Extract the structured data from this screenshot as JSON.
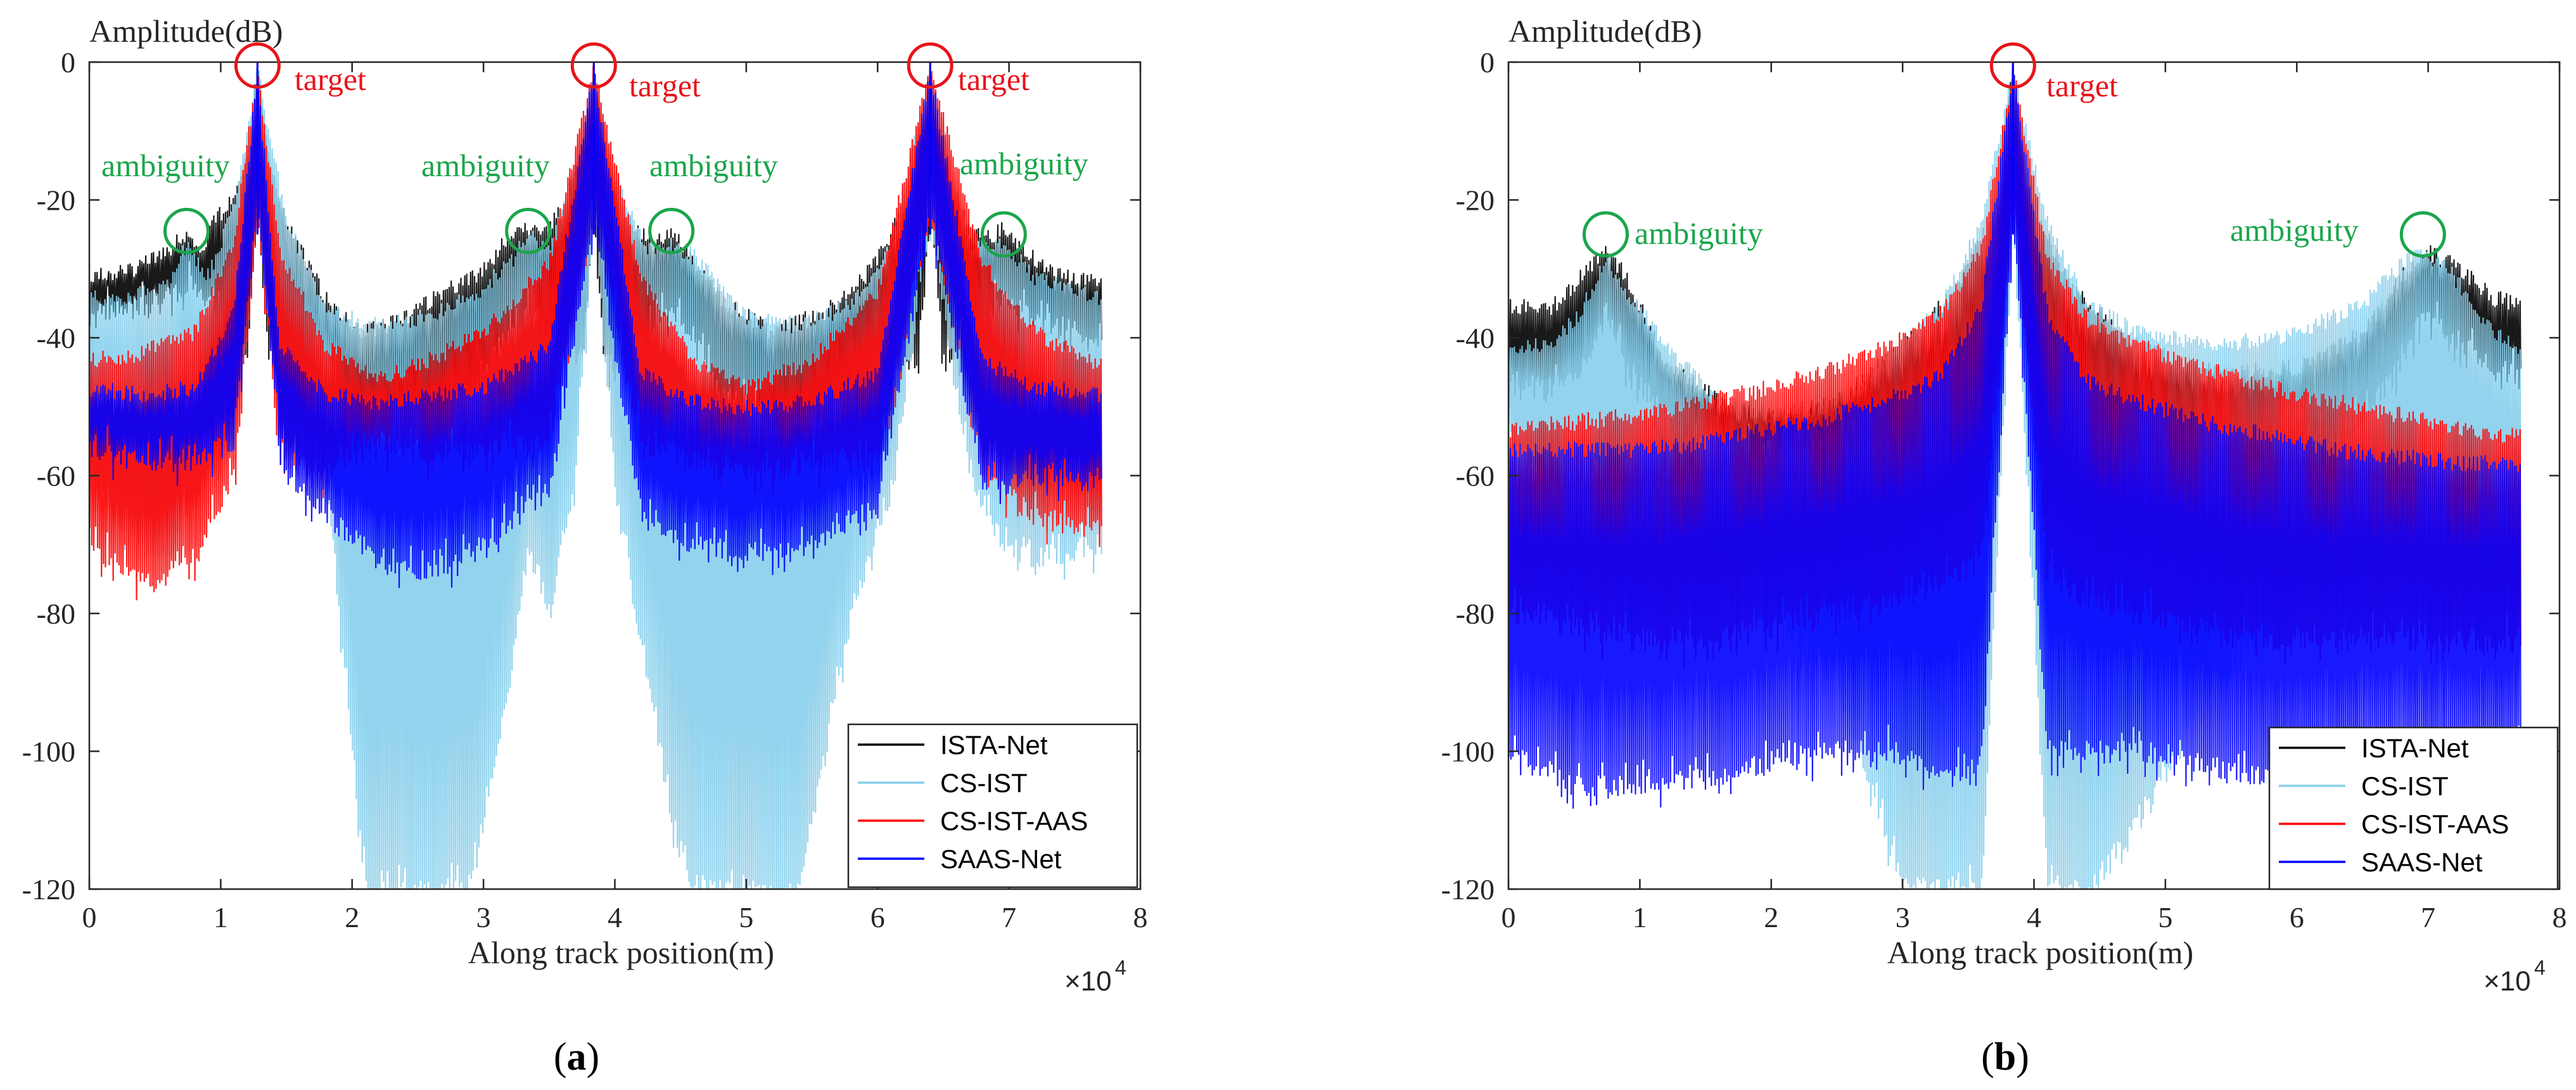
{
  "figure": {
    "panels": [
      {
        "id": "a",
        "caption": {
          "open": "(",
          "letter": "a",
          "close": ")"
        },
        "y_axis_title": "Amplitude(dB)",
        "x_axis_title": "Along track position(m)",
        "x_multiplier": "×10",
        "x_multiplier_exp": "4",
        "x_ticks": [
          "0",
          "1",
          "2",
          "3",
          "4",
          "5",
          "6",
          "7",
          "8"
        ],
        "y_ticks": [
          "0",
          "-20",
          "-40",
          "-60",
          "-80",
          "-100",
          "-120"
        ],
        "annotations": [
          {
            "text": "target",
            "kind": "target"
          },
          {
            "text": "target",
            "kind": "target"
          },
          {
            "text": "target",
            "kind": "target"
          },
          {
            "text": "ambiguity",
            "kind": "ambiguity"
          },
          {
            "text": "ambiguity",
            "kind": "ambiguity"
          },
          {
            "text": "ambiguity",
            "kind": "ambiguity"
          },
          {
            "text": "ambiguity",
            "kind": "ambiguity"
          }
        ],
        "legend": [
          "ISTA-Net",
          "CS-IST",
          "CS-IST-AAS",
          "SAAS-Net"
        ]
      },
      {
        "id": "b",
        "caption": {
          "open": "(",
          "letter": "b",
          "close": ")"
        },
        "y_axis_title": "Amplitude(dB)",
        "x_axis_title": "Along track position(m)",
        "x_multiplier": "×10",
        "x_multiplier_exp": "4",
        "x_ticks": [
          "0",
          "1",
          "2",
          "3",
          "4",
          "5",
          "6",
          "7",
          "8"
        ],
        "y_ticks": [
          "0",
          "-20",
          "-40",
          "-60",
          "-80",
          "-100",
          "-120"
        ],
        "annotations": [
          {
            "text": "target",
            "kind": "target"
          },
          {
            "text": "ambiguity",
            "kind": "ambiguity"
          },
          {
            "text": "ambiguity",
            "kind": "ambiguity"
          }
        ],
        "legend": [
          "ISTA-Net",
          "CS-IST",
          "CS-IST-AAS",
          "SAAS-Net"
        ]
      }
    ]
  },
  "chart_data": [
    {
      "type": "line",
      "panel": "a",
      "xlabel": "Along track position(m)",
      "ylabel": "Amplitude(dB)",
      "x_scale_factor": 10000,
      "xlim": [
        0,
        7.7
      ],
      "ylim": [
        -120,
        0
      ],
      "grid": false,
      "legend_position": "bottom-right",
      "colors": {
        "ISTA-Net": "#000000",
        "CS-IST": "#87ceeb",
        "CS-IST-AAS": "#ff0000",
        "SAAS-Net": "#0000ff"
      },
      "targets_x": [
        1.28,
        3.84,
        6.4
      ],
      "ambiguities": [
        {
          "x": 0.74,
          "y": -24.5
        },
        {
          "x": 3.34,
          "y": -24.5
        },
        {
          "x": 4.43,
          "y": -24.5
        },
        {
          "x": 6.96,
          "y": -25
        }
      ],
      "series": [
        {
          "name": "ISTA-Net",
          "x": [
            0,
            0.3,
            0.55,
            0.65,
            0.74,
            0.85,
            0.95,
            1.1,
            1.2,
            1.28,
            1.36,
            1.5,
            1.8,
            2.1,
            2.4,
            2.7,
            3.0,
            3.15,
            3.25,
            3.34,
            3.45,
            3.6,
            3.75,
            3.84,
            3.92,
            4.1,
            4.3,
            4.43,
            4.55,
            4.8,
            5.2,
            5.6,
            5.9,
            6.1,
            6.3,
            6.4,
            6.5,
            6.7,
            6.85,
            6.96,
            7.1,
            7.3,
            7.7
          ],
          "y_upper": [
            -30,
            -29,
            -27,
            -25,
            -24,
            -26,
            -22,
            -18,
            -12,
            0,
            -12,
            -22,
            -33,
            -38,
            -36,
            -32,
            -29,
            -25,
            -24,
            -23,
            -24,
            -20,
            -12,
            0,
            -13,
            -22,
            -25,
            -24,
            -26,
            -33,
            -38,
            -35,
            -30,
            -24,
            -14,
            0,
            -14,
            -23,
            -24,
            -23,
            -26,
            -29,
            -31
          ],
          "y_lower": [
            -36,
            -36,
            -35,
            -33,
            -32,
            -34,
            -36,
            -40,
            -44,
            -20,
            -44,
            -46,
            -50,
            -56,
            -54,
            -50,
            -46,
            -40,
            -38,
            -36,
            -38,
            -42,
            -44,
            -22,
            -44,
            -42,
            -38,
            -36,
            -38,
            -48,
            -52,
            -50,
            -46,
            -42,
            -44,
            -22,
            -44,
            -40,
            -36,
            -34,
            -36,
            -38,
            -40
          ]
        },
        {
          "name": "CS-IST",
          "x": [
            0,
            0.3,
            0.6,
            0.74,
            0.9,
            1.1,
            1.28,
            1.5,
            1.8,
            2.1,
            2.5,
            2.9,
            3.2,
            3.34,
            3.5,
            3.7,
            3.84,
            4.0,
            4.25,
            4.43,
            4.6,
            5.0,
            5.4,
            5.8,
            6.1,
            6.4,
            6.7,
            6.96,
            7.2,
            7.7
          ],
          "y_upper": [
            -33,
            -33,
            -31,
            -25,
            -30,
            -20,
            0,
            -22,
            -34,
            -37,
            -36,
            -33,
            -28,
            -24,
            -26,
            -15,
            0,
            -16,
            -26,
            -25,
            -27,
            -36,
            -37,
            -34,
            -26,
            0,
            -25,
            -25,
            -30,
            -33
          ],
          "y_lower": [
            -60,
            -70,
            -72,
            -65,
            -60,
            -55,
            -20,
            -52,
            -60,
            -120,
            -120,
            -120,
            -90,
            -70,
            -80,
            -60,
            -20,
            -62,
            -90,
            -110,
            -120,
            -120,
            -120,
            -80,
            -62,
            -22,
            -60,
            -70,
            -72,
            -70
          ]
        },
        {
          "name": "CS-IST-AAS",
          "x": [
            0,
            0.4,
            0.8,
            1.1,
            1.28,
            1.45,
            1.8,
            2.2,
            2.6,
            3.0,
            3.5,
            3.84,
            4.2,
            4.6,
            5.0,
            5.5,
            6.0,
            6.4,
            6.8,
            7.2,
            7.7
          ],
          "y_upper": [
            -42,
            -41,
            -38,
            -25,
            0,
            -26,
            -40,
            -45,
            -42,
            -38,
            -28,
            0,
            -30,
            -42,
            -46,
            -42,
            -32,
            0,
            -28,
            -38,
            -43
          ],
          "y_lower": [
            -70,
            -76,
            -72,
            -60,
            -22,
            -58,
            -60,
            -55,
            -58,
            -56,
            -55,
            -22,
            -55,
            -58,
            -60,
            -58,
            -58,
            -22,
            -60,
            -66,
            -68
          ]
        },
        {
          "name": "SAAS-Net",
          "x": [
            0,
            0.4,
            0.8,
            1.1,
            1.28,
            1.45,
            1.8,
            2.2,
            2.6,
            3.0,
            3.5,
            3.84,
            4.2,
            4.6,
            5.0,
            5.5,
            6.0,
            6.4,
            6.8,
            7.2,
            7.7
          ],
          "y_upper": [
            -46,
            -47,
            -46,
            -35,
            0,
            -40,
            -47,
            -48,
            -47,
            -46,
            -40,
            0,
            -44,
            -48,
            -49,
            -48,
            -44,
            0,
            -42,
            -46,
            -47
          ],
          "y_lower": [
            -56,
            -58,
            -58,
            -55,
            -20,
            -58,
            -66,
            -72,
            -74,
            -70,
            -62,
            -22,
            -66,
            -70,
            -72,
            -70,
            -64,
            -22,
            -62,
            -60,
            -60
          ]
        }
      ]
    },
    {
      "type": "line",
      "panel": "b",
      "xlabel": "Along track position(m)",
      "ylabel": "Amplitude(dB)",
      "x_scale_factor": 10000,
      "xlim": [
        0,
        7.7
      ],
      "ylim": [
        -120,
        0
      ],
      "grid": false,
      "legend_position": "bottom-right",
      "colors": {
        "ISTA-Net": "#000000",
        "CS-IST": "#87ceeb",
        "CS-IST-AAS": "#ff0000",
        "SAAS-Net": "#0000ff"
      },
      "targets_x": [
        3.84
      ],
      "ambiguities": [
        {
          "x": 0.74,
          "y": -25
        },
        {
          "x": 6.96,
          "y": -25
        }
      ],
      "series": [
        {
          "name": "ISTA-Net",
          "x": [
            0,
            0.3,
            0.55,
            0.74,
            0.9,
            1.2,
            1.6,
            2.0,
            2.5,
            3.0,
            3.4,
            3.7,
            3.84,
            4.0,
            4.3,
            4.8,
            5.4,
            6.0,
            6.5,
            6.8,
            6.96,
            7.2,
            7.5,
            7.7
          ],
          "y_upper": [
            -34,
            -35,
            -30,
            -26,
            -30,
            -42,
            -48,
            -50,
            -48,
            -40,
            -32,
            -20,
            0,
            -20,
            -32,
            -40,
            -44,
            -43,
            -38,
            -30,
            -26,
            -28,
            -33,
            -34
          ],
          "y_lower": [
            -46,
            -48,
            -44,
            -36,
            -44,
            -52,
            -56,
            -56,
            -56,
            -56,
            -55,
            -50,
            -20,
            -50,
            -55,
            -56,
            -56,
            -56,
            -52,
            -44,
            -36,
            -40,
            -44,
            -46
          ]
        },
        {
          "name": "CS-IST",
          "x": [
            0,
            0.3,
            0.55,
            0.74,
            0.9,
            1.2,
            1.6,
            2.0,
            2.5,
            3.0,
            3.3,
            3.6,
            3.84,
            4.1,
            4.4,
            4.8,
            5.4,
            6.0,
            6.5,
            6.8,
            6.96,
            7.2,
            7.5,
            7.7
          ],
          "y_upper": [
            -40,
            -40,
            -35,
            -27,
            -32,
            -40,
            -48,
            -50,
            -48,
            -40,
            -34,
            -22,
            0,
            -22,
            -34,
            -38,
            -40,
            -38,
            -34,
            -28,
            -26,
            -30,
            -38,
            -40
          ],
          "y_lower": [
            -55,
            -60,
            -60,
            -58,
            -62,
            -66,
            -72,
            -80,
            -90,
            -120,
            -120,
            -120,
            -22,
            -120,
            -120,
            -110,
            -90,
            -80,
            -76,
            -70,
            -70,
            -72,
            -76,
            -80
          ]
        },
        {
          "name": "CS-IST-AAS",
          "x": [
            0,
            0.5,
            1.0,
            1.5,
            2.0,
            2.5,
            3.0,
            3.3,
            3.6,
            3.84,
            4.1,
            4.4,
            4.8,
            5.3,
            5.8,
            6.3,
            6.8,
            7.3,
            7.7
          ],
          "y_upper": [
            -52,
            -51,
            -50,
            -48,
            -46,
            -43,
            -39,
            -35,
            -26,
            0,
            -27,
            -36,
            -40,
            -43,
            -46,
            -48,
            -50,
            -52,
            -53
          ],
          "y_lower": [
            -80,
            -82,
            -84,
            -84,
            -82,
            -80,
            -78,
            -76,
            -72,
            -22,
            -74,
            -78,
            -80,
            -82,
            -84,
            -84,
            -84,
            -84,
            -84
          ]
        },
        {
          "name": "SAAS-Net",
          "x": [
            0,
            0.5,
            1.0,
            1.5,
            2.0,
            2.5,
            3.0,
            3.3,
            3.6,
            3.84,
            4.1,
            4.4,
            4.8,
            5.3,
            5.8,
            6.3,
            6.8,
            7.3,
            7.7
          ],
          "y_upper": [
            -55,
            -55,
            -55,
            -54,
            -52,
            -50,
            -47,
            -44,
            -34,
            0,
            -35,
            -45,
            -48,
            -51,
            -53,
            -55,
            -56,
            -57,
            -57
          ],
          "y_lower": [
            -100,
            -105,
            -105,
            -104,
            -102,
            -100,
            -100,
            -104,
            -102,
            -22,
            -100,
            -100,
            -100,
            -102,
            -104,
            -102,
            -100,
            -100,
            -100
          ]
        }
      ]
    }
  ]
}
